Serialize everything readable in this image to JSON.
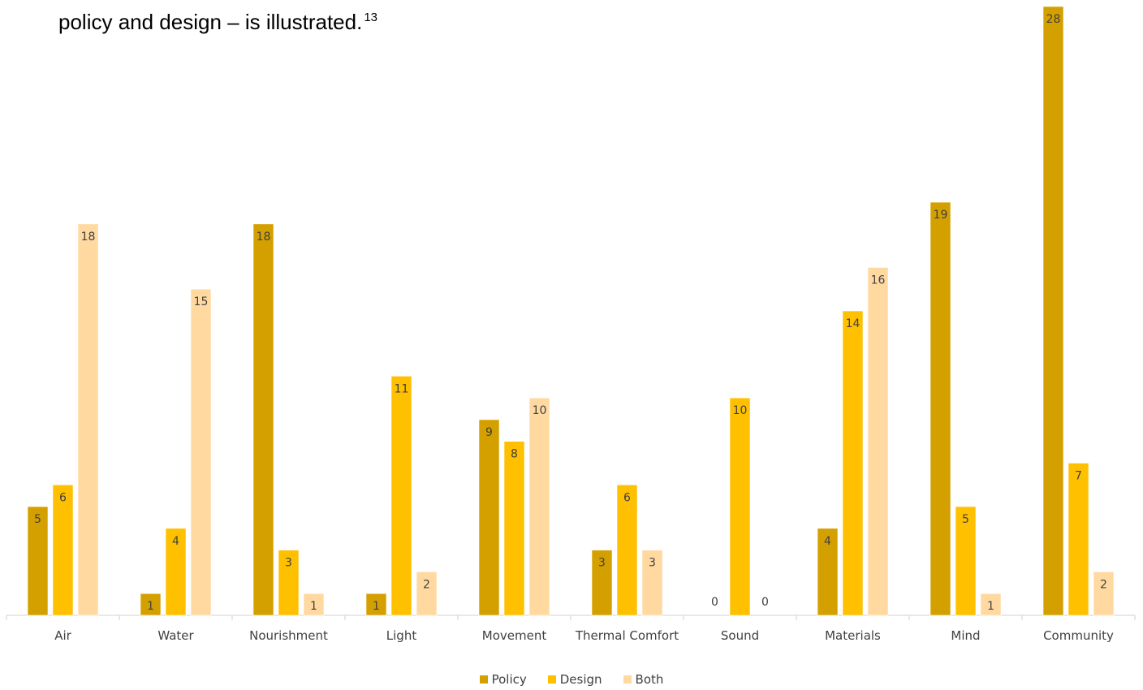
{
  "caption": {
    "text": "policy and design – is illustrated.",
    "footnote": "13"
  },
  "chart_data": {
    "type": "bar",
    "categories": [
      "Air",
      "Water",
      "Nourishment",
      "Light",
      "Movement",
      "Thermal Comfort",
      "Sound",
      "Materials",
      "Mind",
      "Community"
    ],
    "series": [
      {
        "name": "Policy",
        "color": "#D4A000",
        "values": [
          5,
          1,
          18,
          1,
          9,
          3,
          0,
          4,
          19,
          28
        ]
      },
      {
        "name": "Design",
        "color": "#FFC000",
        "values": [
          6,
          4,
          3,
          11,
          8,
          6,
          10,
          14,
          5,
          7
        ]
      },
      {
        "name": "Both",
        "color": "#FFD9A0",
        "values": [
          18,
          15,
          1,
          2,
          10,
          3,
          0,
          16,
          1,
          2
        ]
      }
    ],
    "data_labels": true,
    "grid": false,
    "legend_position": "bottom"
  }
}
